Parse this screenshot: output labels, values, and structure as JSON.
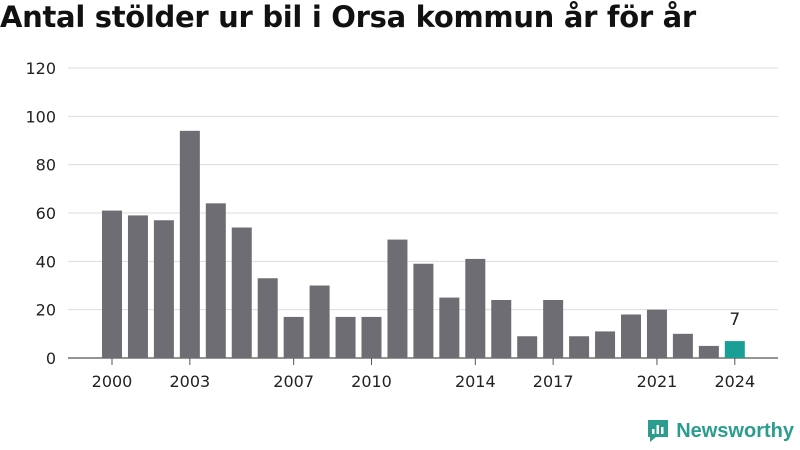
{
  "title": "Antal stölder ur bil i Orsa kommun år för år",
  "brand": {
    "name": "Newsworthy",
    "icon": "newsworthy-logo-icon",
    "color": "#2a9d8f"
  },
  "chart_data": {
    "type": "bar",
    "title": "Antal stölder ur bil i Orsa kommun år för år",
    "xlabel": "",
    "ylabel": "",
    "categories": [
      2000,
      2001,
      2002,
      2003,
      2004,
      2005,
      2006,
      2007,
      2008,
      2009,
      2010,
      2011,
      2012,
      2013,
      2014,
      2015,
      2016,
      2017,
      2018,
      2019,
      2020,
      2021,
      2022,
      2023,
      2024
    ],
    "values": [
      61,
      59,
      57,
      94,
      64,
      54,
      33,
      17,
      30,
      17,
      17,
      49,
      39,
      25,
      41,
      24,
      9,
      24,
      9,
      11,
      18,
      20,
      10,
      5,
      7
    ],
    "ylim": [
      0,
      120
    ],
    "yticks": [
      0,
      20,
      40,
      60,
      80,
      100,
      120
    ],
    "xticks": [
      2000,
      2003,
      2007,
      2010,
      2014,
      2017,
      2021,
      2024
    ],
    "grid": true,
    "bar_color": "#6e6d73",
    "highlight_color": "#1a9e96",
    "highlight_index": 24,
    "annotations": [
      {
        "category": 2024,
        "text": "7"
      }
    ]
  }
}
